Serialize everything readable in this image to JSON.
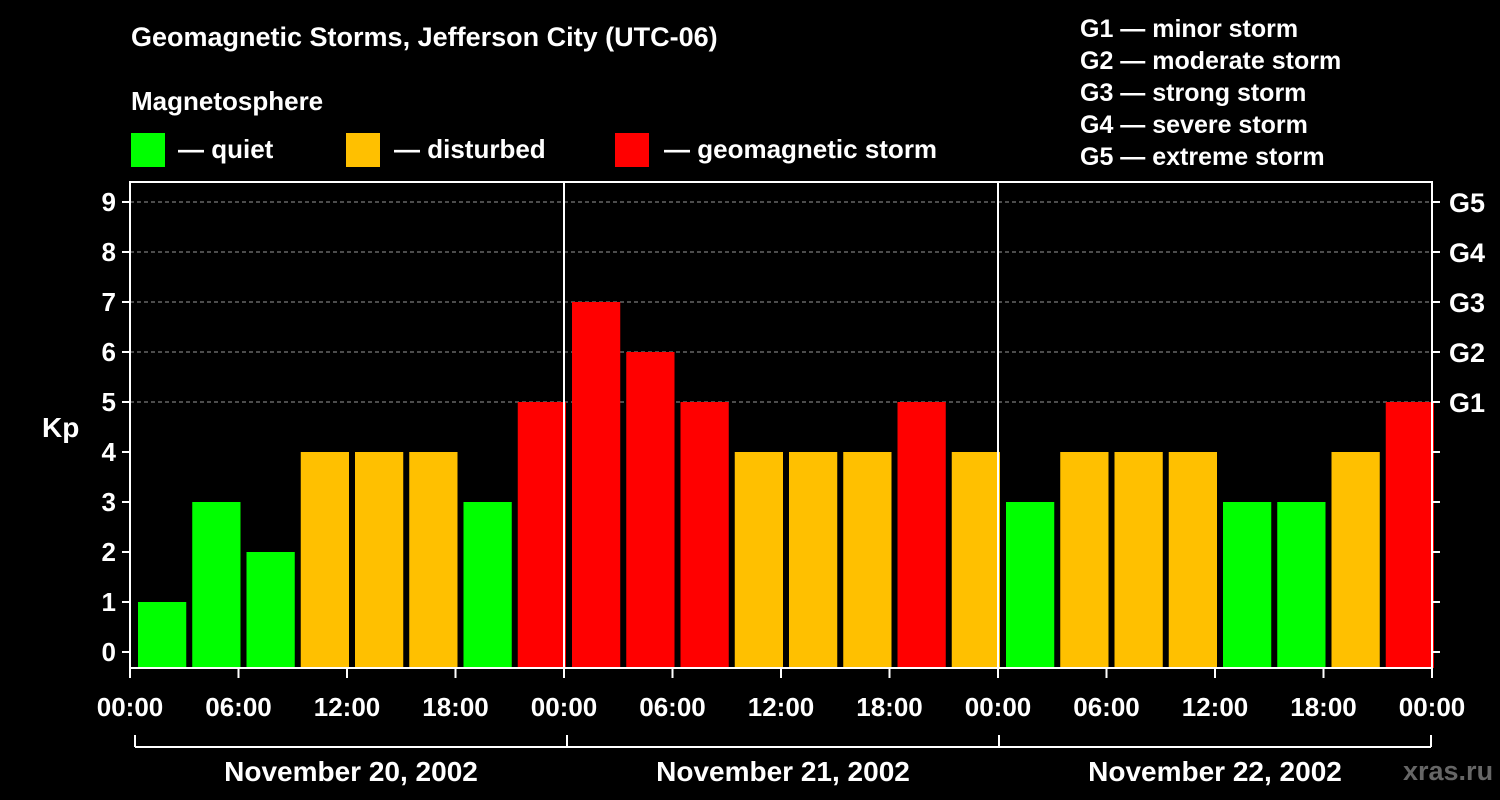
{
  "chart_data": {
    "type": "bar",
    "title": "Geomagnetic Storms, Jefferson City (UTC-06)",
    "subtitle": "Magnetosphere",
    "ylabel": "Kp",
    "ylim": [
      0,
      9
    ],
    "yticks": [
      "0",
      "1",
      "2",
      "3",
      "4",
      "5",
      "6",
      "7",
      "8",
      "9"
    ],
    "grid_levels": [
      5,
      6,
      7,
      8,
      9
    ],
    "g_scale": [
      {
        "level": 5,
        "label": "G1"
      },
      {
        "level": 6,
        "label": "G2"
      },
      {
        "level": 7,
        "label": "G3"
      },
      {
        "level": 8,
        "label": "G4"
      },
      {
        "level": 9,
        "label": "G5"
      }
    ],
    "legend": [
      {
        "label": "— quiet",
        "color": "#00ff00"
      },
      {
        "label": "— disturbed",
        "color": "#ffc000"
      },
      {
        "label": "— geomagnetic storm",
        "color": "#ff0000"
      }
    ],
    "g_legend": [
      "G1 — minor storm",
      "G2 — moderate storm",
      "G3 — strong storm",
      "G4 — severe storm",
      "G5 — extreme storm"
    ],
    "xticks": [
      "00:00",
      "06:00",
      "12:00",
      "18:00",
      "00:00",
      "06:00",
      "12:00",
      "18:00",
      "00:00",
      "06:00",
      "12:00",
      "18:00",
      "00:00"
    ],
    "days": [
      "November 20, 2002",
      "November 21, 2002",
      "November 22, 2002"
    ],
    "values": [
      1,
      3,
      2,
      4,
      4,
      4,
      3,
      5,
      7,
      6,
      5,
      4,
      4,
      4,
      5,
      4,
      3,
      4,
      4,
      4,
      3,
      3,
      4,
      5
    ],
    "colors": {
      "quiet": "#00ff00",
      "disturbed": "#ffc000",
      "storm": "#ff0000"
    }
  },
  "watermark": "xras.ru"
}
